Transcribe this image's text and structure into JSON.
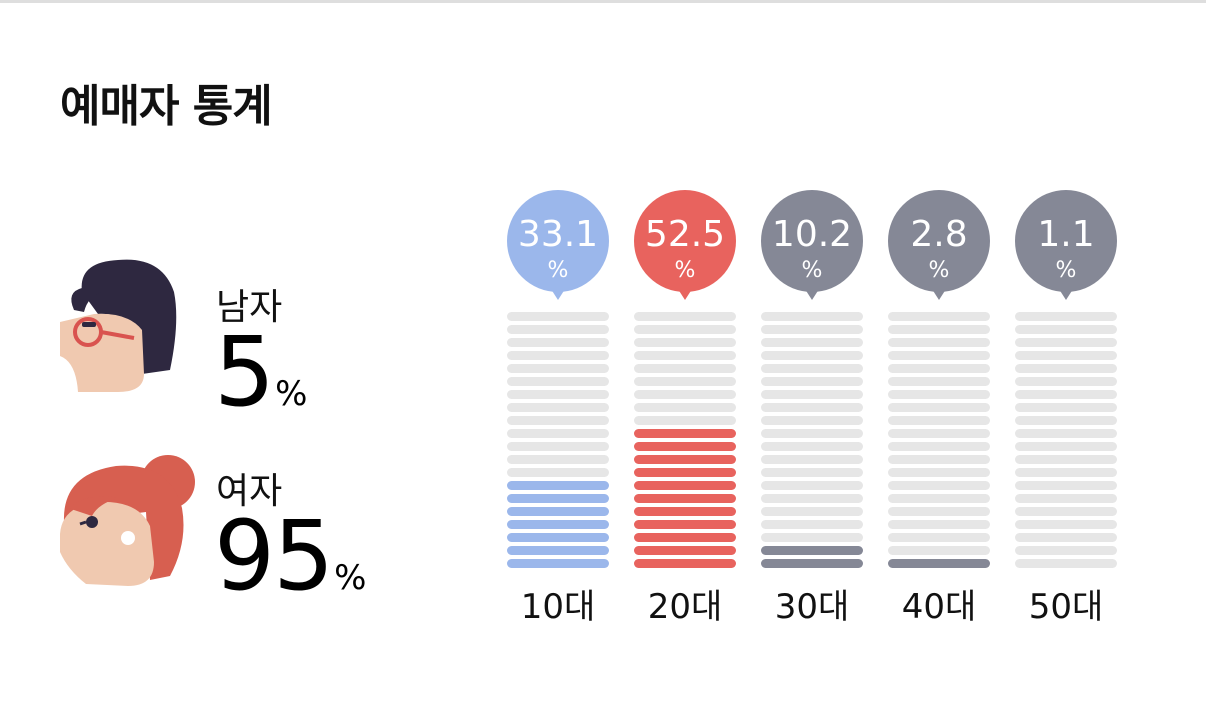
{
  "title": "예매자 통계",
  "gender": {
    "male": {
      "label": "남자",
      "value": "5",
      "unit": "%"
    },
    "female": {
      "label": "여자",
      "value": "95",
      "unit": "%"
    }
  },
  "colors": {
    "teen": "#9bb7eb",
    "twenties": "#e8635e",
    "other": "#858896",
    "track": "#e6e6e6"
  },
  "chart_data": {
    "type": "bar",
    "categories": [
      "10대",
      "20대",
      "30대",
      "40대",
      "50대"
    ],
    "values": [
      33.1,
      52.5,
      10.2,
      2.8,
      1.1
    ],
    "value_labels": [
      "33.1",
      "52.5",
      "10.2",
      "2.8",
      "1.1"
    ],
    "unit": "%",
    "series_colors": [
      "#9bb7eb",
      "#e8635e",
      "#858896",
      "#858896",
      "#858896"
    ],
    "max_segments": 20,
    "filled_segments": [
      7,
      11,
      2,
      1,
      0
    ],
    "title": "",
    "xlabel": "",
    "ylabel": "",
    "ylim": [
      0,
      100
    ]
  }
}
